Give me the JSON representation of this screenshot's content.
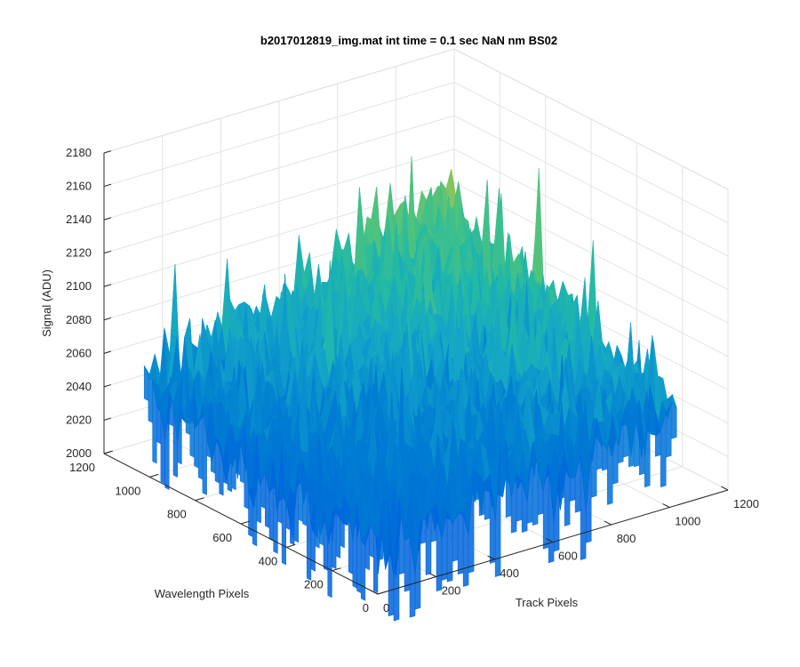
{
  "figure": {
    "title": "b2017012819_img.mat int time = 0.1 sec  NaN nm BS02"
  },
  "chart_data": {
    "type": "surface",
    "title": "b2017012819_img.mat int time = 0.1 sec  NaN nm BS02",
    "xlabel": "Track Pixels",
    "ylabel": "Wavelength Pixels",
    "zlabel": "Signal (ADU)",
    "xlim": [
      0,
      1200
    ],
    "ylim": [
      0,
      1200
    ],
    "zlim": [
      2000,
      2180
    ],
    "x_ticks": [
      "0",
      "200",
      "400",
      "600",
      "800",
      "1000",
      "1200"
    ],
    "y_ticks": [
      "0",
      "200",
      "400",
      "600",
      "800",
      "1000",
      "1200"
    ],
    "z_ticks": [
      "2000",
      "2020",
      "2040",
      "2060",
      "2080",
      "2100",
      "2120",
      "2140",
      "2160",
      "2180"
    ],
    "data_extent": {
      "x": [
        0,
        1024
      ],
      "y": [
        0,
        1024
      ]
    },
    "approx_mean_signal": {
      "near_corner_x0_y0": 2030,
      "left_corner_x0_y1024": 2055,
      "right_corner_x1024_y0": 2060,
      "back_corner_x1024_y1024": 2110
    },
    "noise_amplitude": 20,
    "grid": true,
    "colormap": "parula",
    "colors": {
      "low": "#0072DB",
      "mid": "#22B9A8",
      "high": "#E6C728"
    }
  }
}
